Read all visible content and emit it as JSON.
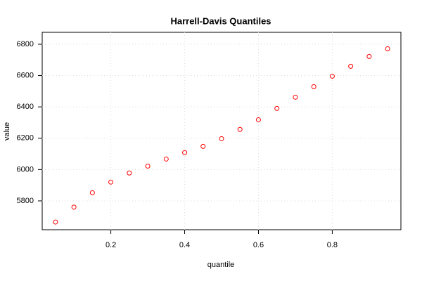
{
  "chart_data": {
    "type": "scatter",
    "title": "Harrell-Davis Quantiles",
    "x_label": "quantile",
    "y_label": "value",
    "x": [
      0.05,
      0.1,
      0.15,
      0.2,
      0.25,
      0.3,
      0.35,
      0.4,
      0.45,
      0.5,
      0.55,
      0.6,
      0.65,
      0.7,
      0.75,
      0.8,
      0.85,
      0.9,
      0.95
    ],
    "values": [
      5665,
      5760,
      5852,
      5920,
      5978,
      6022,
      6067,
      6108,
      6148,
      6197,
      6256,
      6318,
      6390,
      6462,
      6529,
      6596,
      6659,
      6722,
      6771
    ],
    "color": "#ff0000",
    "xlim": [
      0.014,
      0.986
    ],
    "ylim": [
      5616,
      6876
    ],
    "xticks": [
      0.2,
      0.4,
      0.6,
      0.8
    ],
    "yticks": [
      5800,
      6000,
      6200,
      6400,
      6600,
      6800
    ],
    "grid": true
  }
}
